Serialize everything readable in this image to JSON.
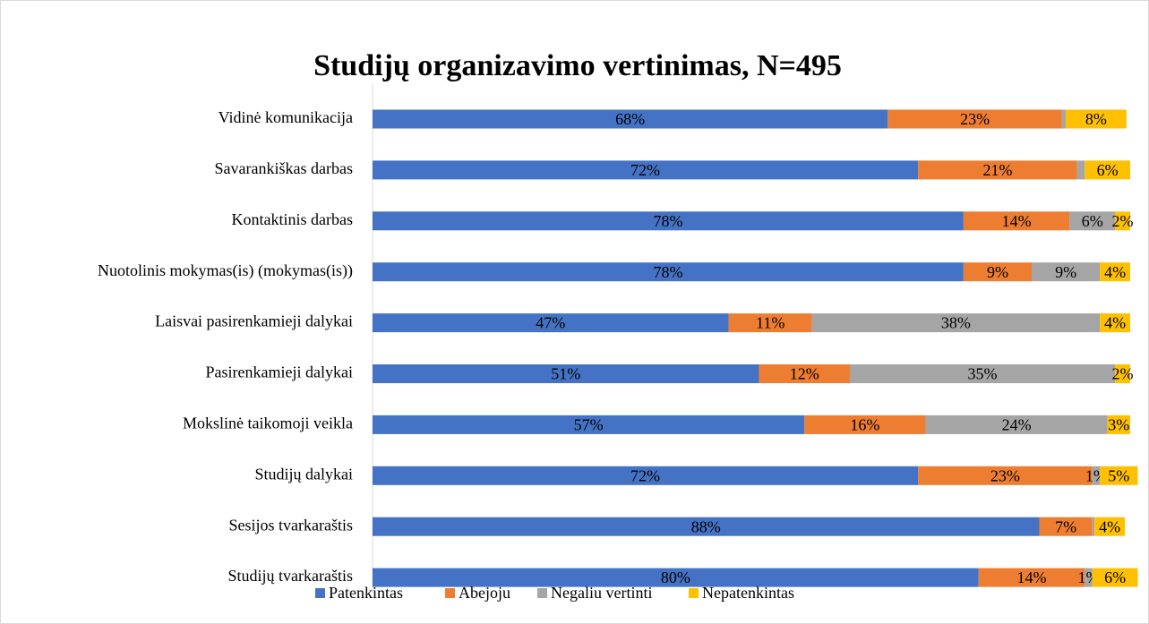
{
  "chart_data": {
    "type": "stacked-bar-horizontal",
    "title": "Studijų organizavimo vertinimas, N=495",
    "categories": [
      "Vidinė komunikacija",
      "Savarankiškas darbas",
      "Kontaktinis darbas ",
      "Nuotolinis mokymas(is) (mokymas(is))",
      "Laisvai pasirenkamieji dalykai ",
      "Pasirenkamieji dalykai",
      "Mokslinė taikomoji veikla",
      "Studijų dalykai ",
      "Sesijos tvarkaraštis",
      "Studijų tvarkaraštis"
    ],
    "xlim": [
      0,
      100
    ],
    "legend": "bottom",
    "series": [
      {
        "name": "Patenkintas",
        "color": "#4472c4",
        "values": [
          68,
          72,
          78,
          78,
          47,
          51,
          57,
          72,
          88,
          80
        ],
        "value_labels": [
          "68%",
          "72%",
          "78%",
          "78%",
          "47%",
          "51%",
          "57%",
          "72%",
          "88%",
          "80%"
        ]
      },
      {
        "name": "Abejoju",
        "color": "#ed7d31",
        "values": [
          23,
          21,
          14,
          9,
          11,
          12,
          16,
          23,
          7,
          14
        ],
        "value_labels": [
          "23%",
          "21%",
          "14%",
          "9%",
          "11%",
          "12%",
          "16%",
          "23%",
          "7%",
          "14%"
        ]
      },
      {
        "name": "Negaliu vertinti",
        "color": "#a5a5a5",
        "values": [
          0.5,
          1,
          6,
          9,
          38,
          35,
          24,
          1,
          0.3,
          1
        ],
        "value_labels": [
          null,
          null,
          "6%",
          "9%",
          "38%",
          "35%",
          "24%",
          "1%",
          null,
          "1%"
        ]
      },
      {
        "name": "Nepatenkintas",
        "color": "#ffc000",
        "values": [
          8,
          6,
          2,
          4,
          4,
          2,
          3,
          5,
          4,
          6
        ],
        "value_labels": [
          "8%",
          "6%",
          "2%",
          "4%",
          "4%",
          "2%",
          "3%",
          "5%",
          "4%",
          "6%"
        ]
      }
    ]
  }
}
